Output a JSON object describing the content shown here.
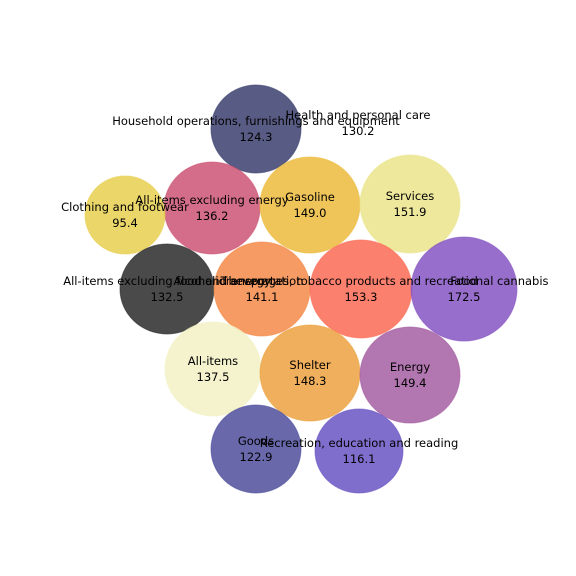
{
  "chart_data": {
    "type": "bubble",
    "title": "",
    "xlabel": "",
    "ylabel": "",
    "grid": false,
    "legend": "none",
    "bubbles": [
      {
        "label": "Household operations, furnishings and equipment",
        "value": 124.3,
        "value_text": "124.3",
        "color": "#3b3f6e"
      },
      {
        "label": "Health and personal care",
        "value": 130.2,
        "value_text": "130.2",
        "color": "#ffffff"
      },
      {
        "label": "All-items excluding energy",
        "value": 136.2,
        "value_text": "136.2",
        "color": "#cd5474"
      },
      {
        "label": "Gasoline",
        "value": 149.0,
        "value_text": "149.0",
        "color": "#ecbb3c"
      },
      {
        "label": "Services",
        "value": 151.9,
        "value_text": "151.9",
        "color": "#ebe48c"
      },
      {
        "label": "Clothing and footwear",
        "value": 95.4,
        "value_text": "95.4",
        "color": "#e8cf50"
      },
      {
        "label": "All-items excluding food and energy",
        "value": 132.5,
        "value_text": "132.5",
        "color": "#2a2a2a"
      },
      {
        "label": "Transportation",
        "value": 141.1,
        "value_text": "141.1",
        "color": "#f48a48"
      },
      {
        "label": "Alcoholic beverages, tobacco products and recreational cannabis",
        "value": 153.3,
        "value_text": "153.3",
        "color": "#fc6a55"
      },
      {
        "label": "Food",
        "value": 172.5,
        "value_text": "172.5",
        "color": "#8555c2"
      },
      {
        "label": "All-items",
        "value": 137.5,
        "value_text": "137.5",
        "color": "#f2f1c4"
      },
      {
        "label": "Shelter",
        "value": 148.3,
        "value_text": "148.3",
        "color": "#eca13f"
      },
      {
        "label": "Energy",
        "value": 149.4,
        "value_text": "149.4",
        "color": "#a45ea2"
      },
      {
        "label": "Goods",
        "value": 122.9,
        "value_text": "122.9",
        "color": "#4e4e9c"
      },
      {
        "label": "Recreation, education and reading",
        "value": 116.1,
        "value_text": "116.1",
        "color": "#6a55c3"
      }
    ]
  }
}
